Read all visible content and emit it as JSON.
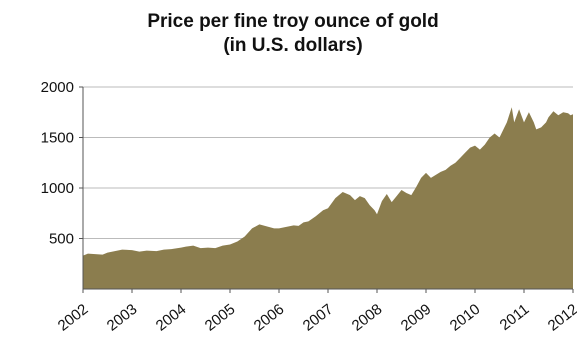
{
  "chart_data": {
    "type": "area",
    "title": "Price per fine troy ounce of gold",
    "subtitle": "(in U.S. dollars)",
    "xlabel": "",
    "ylabel": "",
    "x_ticks": [
      "2002",
      "2003",
      "2004",
      "2005",
      "2006",
      "2007",
      "2008",
      "2009",
      "2010",
      "2011",
      "2012"
    ],
    "y_ticks": [
      "500",
      "1000",
      "1500",
      "2000"
    ],
    "xlim": [
      2002,
      2012
    ],
    "ylim": [
      0,
      2000
    ],
    "grid": "horizontal",
    "legend": "none",
    "color": "#8b7d4e",
    "series": [
      {
        "x": [
          2002.0,
          2002.1,
          2002.25,
          2002.4,
          2002.5,
          2002.65,
          2002.8,
          2003.0,
          2003.15,
          2003.3,
          2003.5,
          2003.65,
          2003.8,
          2004.0,
          2004.1,
          2004.25,
          2004.4,
          2004.55,
          2004.7,
          2004.85,
          2005.0,
          2005.15,
          2005.3,
          2005.45,
          2005.6,
          2005.75,
          2005.9,
          2006.0,
          2006.1,
          2006.2,
          2006.3,
          2006.4,
          2006.5,
          2006.6,
          2006.75,
          2006.9,
          2007.0,
          2007.15,
          2007.3,
          2007.45,
          2007.55,
          2007.65,
          2007.75,
          2007.85,
          2007.95,
          2008.0,
          2008.1,
          2008.2,
          2008.3,
          2008.4,
          2008.5,
          2008.6,
          2008.7,
          2008.8,
          2008.9,
          2009.0,
          2009.1,
          2009.2,
          2009.3,
          2009.4,
          2009.5,
          2009.6,
          2009.7,
          2009.8,
          2009.9,
          2010.0,
          2010.1,
          2010.2,
          2010.3,
          2010.4,
          2010.5,
          2010.6,
          2010.65,
          2010.75,
          2010.8,
          2010.9,
          2011.0,
          2011.05,
          2011.1,
          2011.2,
          2011.25,
          2011.35,
          2011.45,
          2011.5,
          2011.6,
          2011.7,
          2011.8,
          2011.9,
          2011.95,
          2012.0
        ],
        "y": [
          330,
          350,
          345,
          340,
          360,
          375,
          390,
          385,
          370,
          380,
          375,
          390,
          395,
          410,
          420,
          430,
          405,
          410,
          405,
          430,
          440,
          470,
          520,
          600,
          640,
          620,
          600,
          600,
          610,
          620,
          630,
          625,
          660,
          670,
          720,
          780,
          800,
          900,
          960,
          930,
          880,
          920,
          900,
          830,
          780,
          740,
          870,
          940,
          860,
          920,
          980,
          950,
          930,
          1010,
          1100,
          1150,
          1100,
          1130,
          1160,
          1180,
          1220,
          1250,
          1300,
          1350,
          1400,
          1420,
          1380,
          1430,
          1500,
          1540,
          1500,
          1600,
          1650,
          1800,
          1650,
          1780,
          1650,
          1700,
          1750,
          1650,
          1580,
          1600,
          1650,
          1700,
          1760,
          1720,
          1750,
          1740,
          1720,
          1730
        ]
      }
    ]
  }
}
